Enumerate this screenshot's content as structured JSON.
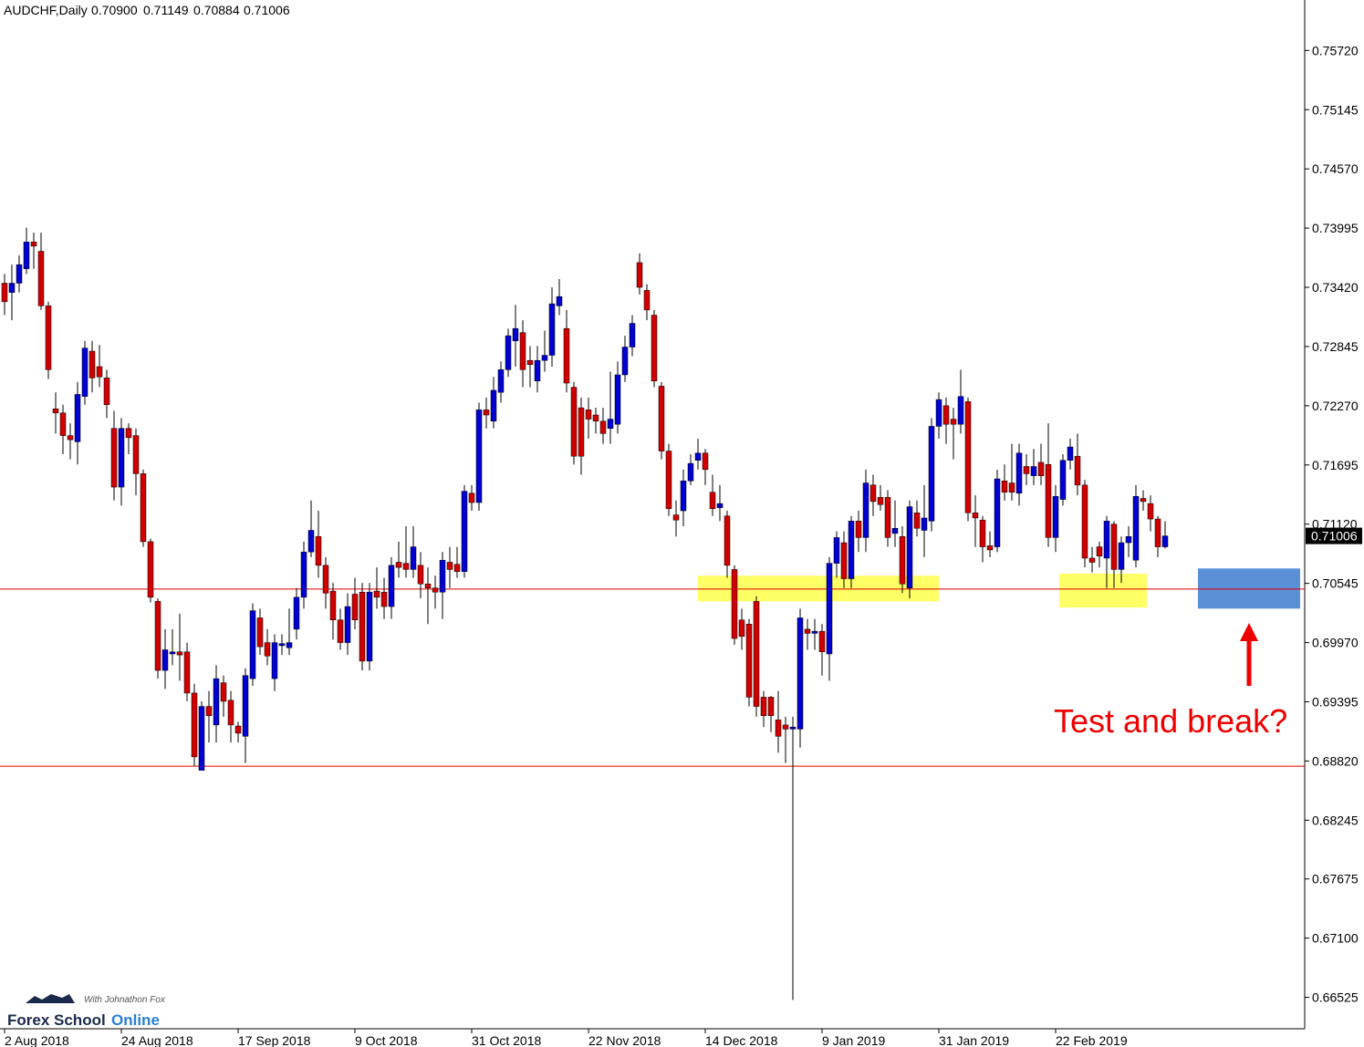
{
  "chart_data": {
    "type": "candlestick",
    "title": "AUDCHF,Daily",
    "last_labels": [
      "0.70900",
      "0.71149",
      "0.70884",
      "0.71006"
    ],
    "up_color": "#0000d0",
    "down_color": "#d00000",
    "ylim": [
      0.6622,
      0.7621
    ],
    "yticks": [
      {
        "value": 0.7572,
        "label": "0.75720"
      },
      {
        "value": 0.75145,
        "label": "0.75145"
      },
      {
        "value": 0.7457,
        "label": "0.74570"
      },
      {
        "value": 0.73995,
        "label": "0.73995"
      },
      {
        "value": 0.7342,
        "label": "0.73420"
      },
      {
        "value": 0.72845,
        "label": "0.72845"
      },
      {
        "value": 0.7227,
        "label": "0.72270"
      },
      {
        "value": 0.71695,
        "label": "0.71695"
      },
      {
        "value": 0.7112,
        "label": "0.71120"
      },
      {
        "value": 0.70545,
        "label": "0.70545"
      },
      {
        "value": 0.6997,
        "label": "0.69970"
      },
      {
        "value": 0.69395,
        "label": "0.69395"
      },
      {
        "value": 0.6882,
        "label": "0.68820"
      },
      {
        "value": 0.68245,
        "label": "0.68245"
      },
      {
        "value": 0.67675,
        "label": "0.67675"
      },
      {
        "value": 0.671,
        "label": "0.67100"
      },
      {
        "value": 0.66525,
        "label": "0.66525"
      }
    ],
    "xticks": [
      {
        "value": 0,
        "label": "2 Aug 2018"
      },
      {
        "value": 16,
        "label": "24 Aug 2018"
      },
      {
        "value": 32,
        "label": "17 Sep 2018"
      },
      {
        "value": 48,
        "label": "9 Oct 2018"
      },
      {
        "value": 64,
        "label": "31 Oct 2018"
      },
      {
        "value": 80,
        "label": "22 Nov 2018"
      },
      {
        "value": 96,
        "label": "14 Dec 2018"
      },
      {
        "value": 112,
        "label": "9 Jan 2019"
      },
      {
        "value": 128,
        "label": "31 Jan 2019"
      },
      {
        "value": 144,
        "label": "22 Feb 2019"
      }
    ],
    "hlines": [
      {
        "value": 0.7049,
        "color": "#e00000"
      },
      {
        "value": 0.6877,
        "color": "#e00000"
      }
    ],
    "zones": [
      {
        "x": [
          95,
          128
        ],
        "y": [
          0.7037,
          0.7062
        ],
        "color": "#ffff66"
      },
      {
        "x": [
          144.5,
          156.5
        ],
        "y": [
          0.7031,
          0.7064
        ],
        "color": "#ffff66"
      },
      {
        "x": [
          163.5,
          177.5
        ],
        "y": [
          0.703,
          0.7069
        ],
        "color": "#5b8fd6"
      }
    ],
    "annotation": "Test and break?",
    "watermark": [
      "Forex School",
      "Online",
      "With Johnathon Fox"
    ],
    "candles": [
      [
        0.7346,
        0.7355,
        0.7315,
        0.7328
      ],
      [
        0.7337,
        0.7364,
        0.731,
        0.7346
      ],
      [
        0.7346,
        0.7373,
        0.7337,
        0.7364
      ],
      [
        0.736,
        0.74,
        0.7355,
        0.7386
      ],
      [
        0.7386,
        0.7395,
        0.736,
        0.7382
      ],
      [
        0.7377,
        0.7395,
        0.732,
        0.7324
      ],
      [
        0.7324,
        0.7328,
        0.7253,
        0.7262
      ],
      [
        0.7224,
        0.724,
        0.72,
        0.722
      ],
      [
        0.722,
        0.7228,
        0.718,
        0.7198
      ],
      [
        0.7198,
        0.721,
        0.7175,
        0.7194
      ],
      [
        0.7192,
        0.725,
        0.717,
        0.7238
      ],
      [
        0.7236,
        0.729,
        0.7228,
        0.7283
      ],
      [
        0.728,
        0.729,
        0.724,
        0.7254
      ],
      [
        0.7265,
        0.7286,
        0.7245,
        0.7255
      ],
      [
        0.7254,
        0.7262,
        0.7215,
        0.7228
      ],
      [
        0.7205,
        0.7222,
        0.7135,
        0.7148
      ],
      [
        0.7148,
        0.7215,
        0.713,
        0.7205
      ],
      [
        0.7205,
        0.721,
        0.718,
        0.7196
      ],
      [
        0.7198,
        0.7205,
        0.714,
        0.7161
      ],
      [
        0.7161,
        0.7165,
        0.709,
        0.7095
      ],
      [
        0.7095,
        0.7098,
        0.7036,
        0.7041
      ],
      [
        0.7037,
        0.704,
        0.6962,
        0.697
      ],
      [
        0.697,
        0.701,
        0.6952,
        0.699
      ],
      [
        0.6986,
        0.701,
        0.6975,
        0.6988
      ],
      [
        0.6988,
        0.7025,
        0.696,
        0.6985
      ],
      [
        0.6988,
        0.6997,
        0.694,
        0.6948
      ],
      [
        0.6948,
        0.6957,
        0.6877,
        0.6886
      ],
      [
        0.6873,
        0.694,
        0.6873,
        0.6935
      ],
      [
        0.6935,
        0.695,
        0.69,
        0.6926
      ],
      [
        0.6917,
        0.6975,
        0.69,
        0.6962
      ],
      [
        0.6958,
        0.6965,
        0.6925,
        0.694
      ],
      [
        0.6941,
        0.695,
        0.69,
        0.6917
      ],
      [
        0.6916,
        0.692,
        0.69,
        0.6909
      ],
      [
        0.6906,
        0.6972,
        0.688,
        0.6965
      ],
      [
        0.6962,
        0.7035,
        0.6955,
        0.7028
      ],
      [
        0.7021,
        0.703,
        0.6985,
        0.6993
      ],
      [
        0.6997,
        0.701,
        0.6975,
        0.6984
      ],
      [
        0.6962,
        0.7005,
        0.695,
        0.6997
      ],
      [
        0.6994,
        0.7005,
        0.6985,
        0.6996
      ],
      [
        0.6992,
        0.703,
        0.6985,
        0.6997
      ],
      [
        0.701,
        0.705,
        0.7,
        0.7041
      ],
      [
        0.7041,
        0.7095,
        0.703,
        0.7085
      ],
      [
        0.7085,
        0.7135,
        0.708,
        0.7106
      ],
      [
        0.71,
        0.7125,
        0.706,
        0.7072
      ],
      [
        0.7072,
        0.708,
        0.703,
        0.7045
      ],
      [
        0.7047,
        0.7055,
        0.7,
        0.7019
      ],
      [
        0.7019,
        0.703,
        0.699,
        0.6997
      ],
      [
        0.6997,
        0.7045,
        0.6985,
        0.7032
      ],
      [
        0.7044,
        0.706,
        0.701,
        0.7019
      ],
      [
        0.7046,
        0.7055,
        0.697,
        0.6979
      ],
      [
        0.6979,
        0.7055,
        0.697,
        0.7046
      ],
      [
        0.7047,
        0.707,
        0.703,
        0.7041
      ],
      [
        0.7046,
        0.706,
        0.702,
        0.7032
      ],
      [
        0.7032,
        0.708,
        0.702,
        0.7072
      ],
      [
        0.7075,
        0.7095,
        0.706,
        0.707
      ],
      [
        0.7074,
        0.711,
        0.706,
        0.7068
      ],
      [
        0.7068,
        0.711,
        0.706,
        0.709
      ],
      [
        0.7072,
        0.7085,
        0.704,
        0.7054
      ],
      [
        0.7054,
        0.707,
        0.7015,
        0.705
      ],
      [
        0.705,
        0.7062,
        0.703,
        0.7046
      ],
      [
        0.7046,
        0.7085,
        0.702,
        0.7077
      ],
      [
        0.7075,
        0.709,
        0.705,
        0.7068
      ],
      [
        0.7073,
        0.709,
        0.706,
        0.7066
      ],
      [
        0.7066,
        0.715,
        0.706,
        0.7144
      ],
      [
        0.7142,
        0.715,
        0.7125,
        0.7133
      ],
      [
        0.7133,
        0.723,
        0.7125,
        0.7223
      ],
      [
        0.7223,
        0.7235,
        0.7205,
        0.7218
      ],
      [
        0.7212,
        0.7255,
        0.7205,
        0.7242
      ],
      [
        0.724,
        0.727,
        0.723,
        0.7262
      ],
      [
        0.7262,
        0.7302,
        0.7255,
        0.7295
      ],
      [
        0.729,
        0.7325,
        0.7265,
        0.7302
      ],
      [
        0.7298,
        0.731,
        0.7245,
        0.7262
      ],
      [
        0.7271,
        0.7285,
        0.7245,
        0.7267
      ],
      [
        0.7251,
        0.7285,
        0.724,
        0.7271
      ],
      [
        0.7271,
        0.73,
        0.726,
        0.7276
      ],
      [
        0.7276,
        0.7342,
        0.7265,
        0.7326
      ],
      [
        0.7324,
        0.735,
        0.7315,
        0.7333
      ],
      [
        0.7302,
        0.732,
        0.724,
        0.7249
      ],
      [
        0.7245,
        0.725,
        0.717,
        0.7178
      ],
      [
        0.7225,
        0.7235,
        0.716,
        0.7178
      ],
      [
        0.7223,
        0.7235,
        0.7195,
        0.7214
      ],
      [
        0.7218,
        0.7225,
        0.72,
        0.7212
      ],
      [
        0.7212,
        0.7225,
        0.719,
        0.72
      ],
      [
        0.7205,
        0.726,
        0.719,
        0.7214
      ],
      [
        0.7209,
        0.727,
        0.72,
        0.7257
      ],
      [
        0.7257,
        0.7295,
        0.725,
        0.7284
      ],
      [
        0.7284,
        0.7315,
        0.7275,
        0.7307
      ],
      [
        0.7366,
        0.7375,
        0.7335,
        0.7342
      ],
      [
        0.7339,
        0.7345,
        0.731,
        0.732
      ],
      [
        0.7315,
        0.732,
        0.7245,
        0.7251
      ],
      [
        0.7246,
        0.725,
        0.7175,
        0.7183
      ],
      [
        0.7183,
        0.719,
        0.712,
        0.7127
      ],
      [
        0.7121,
        0.7135,
        0.71,
        0.7116
      ],
      [
        0.7125,
        0.7165,
        0.711,
        0.7154
      ],
      [
        0.7154,
        0.718,
        0.715,
        0.7171
      ],
      [
        0.7174,
        0.7195,
        0.7165,
        0.7181
      ],
      [
        0.7181,
        0.7185,
        0.715,
        0.7165
      ],
      [
        0.7143,
        0.716,
        0.712,
        0.7127
      ],
      [
        0.7128,
        0.715,
        0.7115,
        0.7132
      ],
      [
        0.712,
        0.7125,
        0.706,
        0.7072
      ],
      [
        0.7068,
        0.7072,
        0.6995,
        0.7001
      ],
      [
        0.7019,
        0.703,
        0.699,
        0.7003
      ],
      [
        0.7015,
        0.702,
        0.6935,
        0.6944
      ],
      [
        0.7037,
        0.7042,
        0.6925,
        0.6935
      ],
      [
        0.6944,
        0.695,
        0.6915,
        0.6926
      ],
      [
        0.6944,
        0.6945,
        0.691,
        0.6926
      ],
      [
        0.6922,
        0.695,
        0.689,
        0.6906
      ],
      [
        0.6917,
        0.6925,
        0.688,
        0.6913
      ],
      [
        0.6913,
        0.6925,
        0.665,
        0.6915
      ],
      [
        0.6913,
        0.703,
        0.6895,
        0.7021
      ],
      [
        0.701,
        0.702,
        0.699,
        0.7006
      ],
      [
        0.7006,
        0.702,
        0.699,
        0.7008
      ],
      [
        0.7008,
        0.7015,
        0.6965,
        0.6988
      ],
      [
        0.6986,
        0.708,
        0.696,
        0.7074
      ],
      [
        0.7074,
        0.7105,
        0.706,
        0.7099
      ],
      [
        0.7094,
        0.7105,
        0.705,
        0.7059
      ],
      [
        0.7059,
        0.712,
        0.705,
        0.7115
      ],
      [
        0.7115,
        0.7125,
        0.7085,
        0.7099
      ],
      [
        0.7099,
        0.7165,
        0.7085,
        0.7152
      ],
      [
        0.715,
        0.716,
        0.712,
        0.7134
      ],
      [
        0.7138,
        0.715,
        0.7125,
        0.7131
      ],
      [
        0.7138,
        0.7145,
        0.709,
        0.7099
      ],
      [
        0.7103,
        0.7135,
        0.709,
        0.7108
      ],
      [
        0.71,
        0.711,
        0.7045,
        0.7054
      ],
      [
        0.705,
        0.7135,
        0.704,
        0.7129
      ],
      [
        0.7123,
        0.7135,
        0.71,
        0.7108
      ],
      [
        0.7106,
        0.715,
        0.708,
        0.7118
      ],
      [
        0.7115,
        0.7215,
        0.7105,
        0.7207
      ],
      [
        0.7207,
        0.724,
        0.7195,
        0.7233
      ],
      [
        0.7227,
        0.7235,
        0.719,
        0.7209
      ],
      [
        0.7214,
        0.7225,
        0.7175,
        0.7209
      ],
      [
        0.7209,
        0.7262,
        0.72,
        0.7236
      ],
      [
        0.7231,
        0.7235,
        0.7115,
        0.7123
      ],
      [
        0.7123,
        0.714,
        0.709,
        0.7118
      ],
      [
        0.7116,
        0.712,
        0.7075,
        0.709
      ],
      [
        0.7091,
        0.7105,
        0.708,
        0.7087
      ],
      [
        0.709,
        0.7165,
        0.7085,
        0.7156
      ],
      [
        0.7154,
        0.717,
        0.7135,
        0.7143
      ],
      [
        0.7152,
        0.719,
        0.7135,
        0.7143
      ],
      [
        0.7142,
        0.719,
        0.713,
        0.7181
      ],
      [
        0.7168,
        0.718,
        0.715,
        0.7161
      ],
      [
        0.7159,
        0.7185,
        0.715,
        0.7168
      ],
      [
        0.7172,
        0.719,
        0.715,
        0.7159
      ],
      [
        0.717,
        0.721,
        0.709,
        0.7099
      ],
      [
        0.7099,
        0.715,
        0.7085,
        0.7139
      ],
      [
        0.7136,
        0.718,
        0.713,
        0.7174
      ],
      [
        0.7174,
        0.7195,
        0.7165,
        0.7187
      ],
      [
        0.7178,
        0.72,
        0.714,
        0.715
      ],
      [
        0.715,
        0.7155,
        0.707,
        0.7079
      ],
      [
        0.7079,
        0.709,
        0.7065,
        0.7075
      ],
      [
        0.709,
        0.7095,
        0.707,
        0.7081
      ],
      [
        0.7079,
        0.712,
        0.705,
        0.7115
      ],
      [
        0.7112,
        0.7115,
        0.705,
        0.7068
      ],
      [
        0.7068,
        0.71,
        0.7055,
        0.7094
      ],
      [
        0.7094,
        0.711,
        0.708,
        0.71
      ],
      [
        0.7077,
        0.715,
        0.707,
        0.7139
      ],
      [
        0.7137,
        0.7145,
        0.7125,
        0.7134
      ],
      [
        0.7132,
        0.714,
        0.7105,
        0.7117
      ],
      [
        0.7117,
        0.712,
        0.708,
        0.709
      ],
      [
        0.709,
        0.71149,
        0.70884,
        0.71006
      ]
    ]
  }
}
